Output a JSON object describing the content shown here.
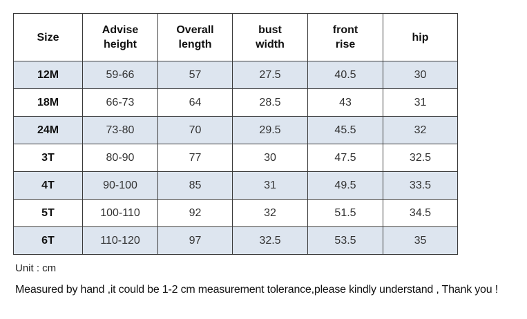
{
  "table": {
    "headers": [
      {
        "line1": "Size",
        "line2": ""
      },
      {
        "line1": "Advise",
        "line2": "height"
      },
      {
        "line1": "Overall",
        "line2": "length"
      },
      {
        "line1": "bust",
        "line2": "width"
      },
      {
        "line1": "front",
        "line2": "rise"
      },
      {
        "line1": "hip",
        "line2": ""
      }
    ],
    "rows": [
      {
        "size": "12M",
        "height": "59-66",
        "length": "57",
        "bust": "27.5",
        "rise": "40.5",
        "hip": "30"
      },
      {
        "size": "18M",
        "height": "66-73",
        "length": "64",
        "bust": "28.5",
        "rise": "43",
        "hip": "31"
      },
      {
        "size": "24M",
        "height": "73-80",
        "length": "70",
        "bust": "29.5",
        "rise": "45.5",
        "hip": "32"
      },
      {
        "size": "3T",
        "height": "80-90",
        "length": "77",
        "bust": "30",
        "rise": "47.5",
        "hip": "32.5"
      },
      {
        "size": "4T",
        "height": "90-100",
        "length": "85",
        "bust": "31",
        "rise": "49.5",
        "hip": "33.5"
      },
      {
        "size": "5T",
        "height": "100-110",
        "length": "92",
        "bust": "32",
        "rise": "51.5",
        "hip": "34.5"
      },
      {
        "size": "6T",
        "height": "110-120",
        "length": "97",
        "bust": "32.5",
        "rise": "53.5",
        "hip": "35"
      }
    ]
  },
  "notes": {
    "unit": "Unit : cm",
    "disclaimer": "Measured by hand ,it could be 1-2 cm measurement tolerance,please kindly understand , Thank you !"
  },
  "colors": {
    "shaded_row": "#dde5ef",
    "border": "#3a3a3a"
  }
}
